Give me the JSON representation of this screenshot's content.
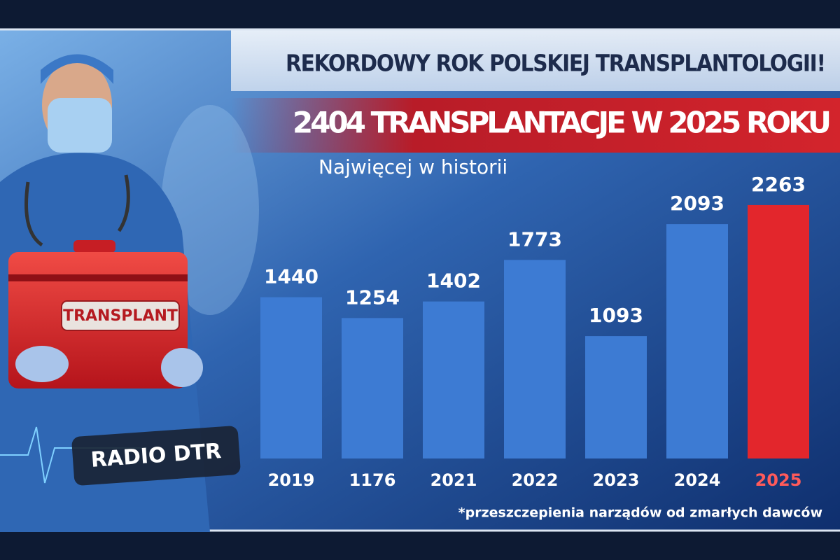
{
  "chart_data": {
    "type": "bar",
    "title": "REKORDOWY ROK POLSKIEJ TRANSPLANTOLOGII!",
    "headline": "2404 TRANSPLANTACJE W 2025 ROKU",
    "subtitle": "Najwięcej w historii",
    "footnote": "*przeszczepienia narządów od zmarłych dawców",
    "box_label": "TRANSPLANT",
    "badge": "RADIO DTR",
    "categories": [
      "2019",
      "1176",
      "2021",
      "2022",
      "2023",
      "2024",
      "2025"
    ],
    "values": [
      1440,
      1254,
      1402,
      1773,
      1093,
      2093,
      2263
    ],
    "colors": [
      "#3d7bd3",
      "#3d7bd3",
      "#3d7bd3",
      "#3d7bd3",
      "#3d7bd3",
      "#3d7bd3",
      "#e3262c"
    ]
  }
}
